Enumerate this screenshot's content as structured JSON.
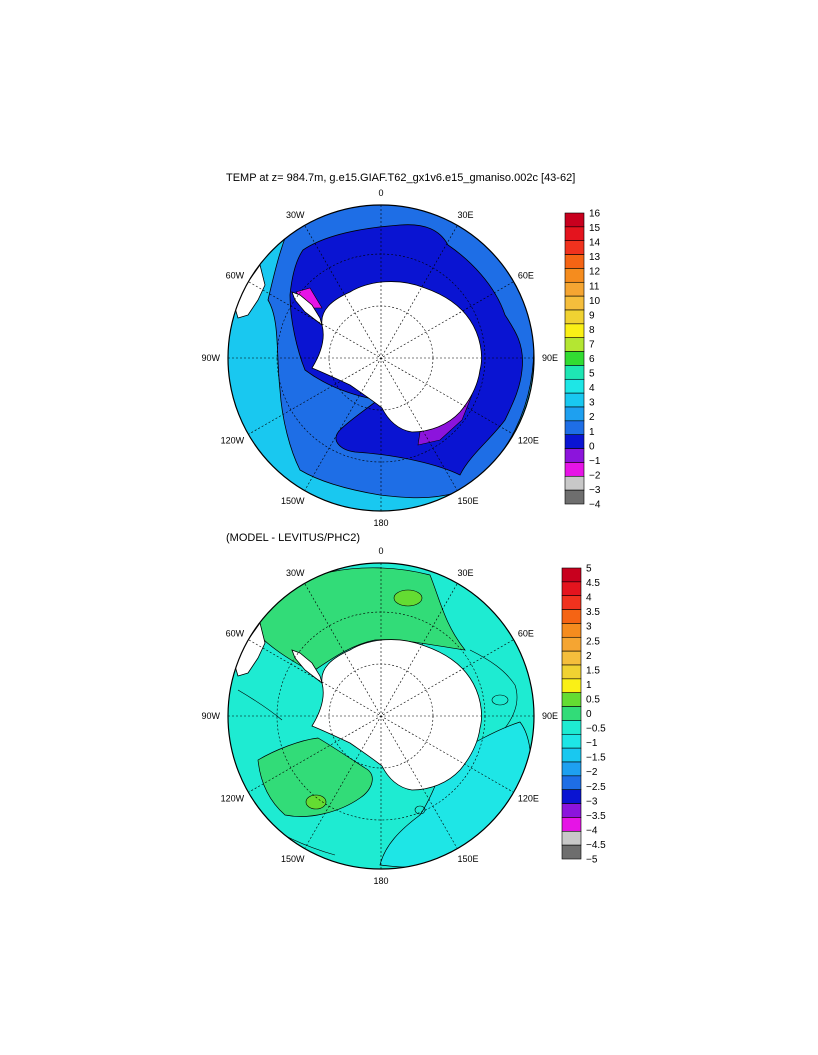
{
  "top_panel": {
    "title": "TEMP at z= 984.7m, g.e15.GIAF.T62_gx1v6.e15_gmaniso.002c [43-62]",
    "lon_labels": [
      "0",
      "30E",
      "60E",
      "90E",
      "120E",
      "150E",
      "180",
      "150W",
      "120W",
      "90W",
      "60W",
      "30W"
    ],
    "colorbar": {
      "labels": [
        "16",
        "15",
        "14",
        "13",
        "12",
        "11",
        "10",
        "9",
        "8",
        "7",
        "6",
        "5",
        "4",
        "3",
        "2",
        "1",
        "0",
        "−1",
        "−2",
        "−3",
        "−4"
      ],
      "colors": [
        "#c8001e",
        "#e4141e",
        "#f0321e",
        "#f56414",
        "#f58c1e",
        "#f5a532",
        "#f5be3c",
        "#f0d232",
        "#faf016",
        "#b4e632",
        "#32dc32",
        "#1ee6b4",
        "#1ee6e6",
        "#19c8f0",
        "#1ea0f0",
        "#1e6ee6",
        "#0a14d2",
        "#8c14dc",
        "#e614e6",
        "#c8c8c8",
        "#6e6e6e"
      ]
    }
  },
  "bottom_panel": {
    "title": "(MODEL - LEVITUS/PHC2)",
    "lon_labels": [
      "0",
      "30E",
      "60E",
      "90E",
      "120E",
      "150E",
      "180",
      "150W",
      "120W",
      "90W",
      "60W",
      "30W"
    ],
    "colorbar": {
      "labels": [
        "5",
        "4.5",
        "4",
        "3.5",
        "3",
        "2.5",
        "2",
        "1.5",
        "1",
        "0.5",
        "0",
        "−0.5",
        "−1",
        "−1.5",
        "−2",
        "−2.5",
        "−3",
        "−3.5",
        "−4",
        "−4.5",
        "−5"
      ],
      "colors": [
        "#c8001e",
        "#e4141e",
        "#f0321e",
        "#f56414",
        "#f58c1e",
        "#f5a532",
        "#f5be3c",
        "#f0d232",
        "#faf016",
        "#64dc32",
        "#32dc78",
        "#1eebd2",
        "#1ee6e6",
        "#19c8f0",
        "#1ea0f0",
        "#1e6ee6",
        "#0a14d2",
        "#8c14dc",
        "#e614e6",
        "#c8c8c8",
        "#6e6e6e"
      ]
    }
  }
}
